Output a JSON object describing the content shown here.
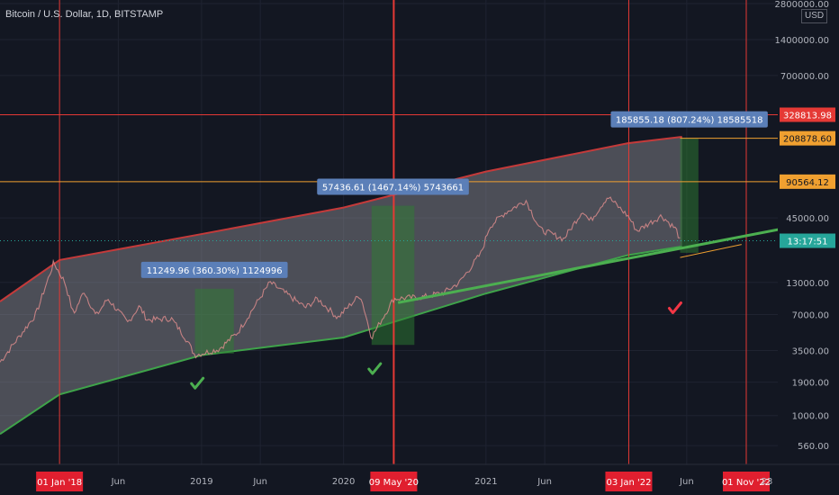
{
  "header": {
    "title": "Bitcoin / U.S. Dollar, 1D, BITSTAMP",
    "unit": "USD"
  },
  "colors": {
    "background": "#131722",
    "band_fill": "#9a9aa3",
    "band_top": "#c43a3a",
    "band_bottom": "#3fa34a",
    "price": "#26a69a",
    "red_line": "#e53935",
    "orange_line": "#f0a030",
    "trend_green": "#4caf50",
    "check_green": "#4caf50",
    "check_red": "#f23645",
    "box_label": "#5b7fb8",
    "box_fill": "#2e7d32"
  },
  "chart_data": {
    "type": "line",
    "y_scale": "log",
    "ylim": [
      390,
      3000000
    ],
    "y_ticks": [
      {
        "v": 2800000,
        "label": "2800000.00"
      },
      {
        "v": 1400000,
        "label": "1400000.00"
      },
      {
        "v": 700000,
        "label": "700000.00"
      },
      {
        "v": 45000,
        "label": "45000.00"
      },
      {
        "v": 13000,
        "label": "13000.00"
      },
      {
        "v": 7000,
        "label": "7000.00"
      },
      {
        "v": 3500,
        "label": "3500.00"
      },
      {
        "v": 1900,
        "label": "1900.00"
      },
      {
        "v": 1000,
        "label": "1000.00"
      },
      {
        "v": 560,
        "label": "560.00"
      }
    ],
    "x_ticks": [
      {
        "date": "2018-06-01",
        "label": "Jun"
      },
      {
        "date": "2019-01-01",
        "label": "2019"
      },
      {
        "date": "2019-06-01",
        "label": "Jun"
      },
      {
        "date": "2020-01-01",
        "label": "2020"
      },
      {
        "date": "2021-01-01",
        "label": "2021"
      },
      {
        "date": "2021-06-01",
        "label": "Jun"
      },
      {
        "date": "2022-06-01",
        "label": "Jun"
      }
    ],
    "x_markers": [
      {
        "date": "2018-01-01",
        "label": "01 Jan '18"
      },
      {
        "date": "2020-05-09",
        "label": "09 May '20",
        "emphasis": true
      },
      {
        "date": "2022-01-03",
        "label": "03 Jan '22"
      },
      {
        "date": "2022-11-01",
        "label": "01 Nov '22"
      }
    ],
    "x_edge_label": "23",
    "price_series": [
      {
        "date": "2017-08-01",
        "v": 2800
      },
      {
        "date": "2017-11-01",
        "v": 7000
      },
      {
        "date": "2017-12-17",
        "v": 19000
      },
      {
        "date": "2018-01-15",
        "v": 13000
      },
      {
        "date": "2018-02-06",
        "v": 7000
      },
      {
        "date": "2018-03-05",
        "v": 11000
      },
      {
        "date": "2018-04-05",
        "v": 6800
      },
      {
        "date": "2018-05-05",
        "v": 9500
      },
      {
        "date": "2018-06-25",
        "v": 6000
      },
      {
        "date": "2018-07-25",
        "v": 8200
      },
      {
        "date": "2018-08-15",
        "v": 6300
      },
      {
        "date": "2018-10-15",
        "v": 6500
      },
      {
        "date": "2018-11-20",
        "v": 4500
      },
      {
        "date": "2018-12-15",
        "v": 3200
      },
      {
        "date": "2019-02-15",
        "v": 3600
      },
      {
        "date": "2019-04-05",
        "v": 5000
      },
      {
        "date": "2019-05-15",
        "v": 8000
      },
      {
        "date": "2019-06-26",
        "v": 13000
      },
      {
        "date": "2019-08-15",
        "v": 10000
      },
      {
        "date": "2019-09-25",
        "v": 8000
      },
      {
        "date": "2019-10-26",
        "v": 9500
      },
      {
        "date": "2019-12-17",
        "v": 6600
      },
      {
        "date": "2020-02-13",
        "v": 10300
      },
      {
        "date": "2020-03-13",
        "v": 4500
      },
      {
        "date": "2020-05-09",
        "v": 9500
      },
      {
        "date": "2020-07-25",
        "v": 9800
      },
      {
        "date": "2020-09-15",
        "v": 10700
      },
      {
        "date": "2020-10-25",
        "v": 13000
      },
      {
        "date": "2020-12-20",
        "v": 23000
      },
      {
        "date": "2021-01-10",
        "v": 38000
      },
      {
        "date": "2021-02-20",
        "v": 50000
      },
      {
        "date": "2021-04-14",
        "v": 63000
      },
      {
        "date": "2021-05-20",
        "v": 36000
      },
      {
        "date": "2021-07-20",
        "v": 30000
      },
      {
        "date": "2021-09-07",
        "v": 52000
      },
      {
        "date": "2021-09-25",
        "v": 42000
      },
      {
        "date": "2021-11-10",
        "v": 68000
      },
      {
        "date": "2022-01-03",
        "v": 46000
      },
      {
        "date": "2022-01-24",
        "v": 35000
      },
      {
        "date": "2022-03-28",
        "v": 47000
      },
      {
        "date": "2022-05-05",
        "v": 36000
      },
      {
        "date": "2022-05-15",
        "v": 29000
      }
    ],
    "band_top": [
      {
        "date": "2017-08-01",
        "v": 9000
      },
      {
        "date": "2018-01-01",
        "v": 20000
      },
      {
        "date": "2019-01-01",
        "v": 33000
      },
      {
        "date": "2020-01-01",
        "v": 55000
      },
      {
        "date": "2021-01-01",
        "v": 110000
      },
      {
        "date": "2022-01-01",
        "v": 190000
      },
      {
        "date": "2022-05-20",
        "v": 215000
      }
    ],
    "band_bottom": [
      {
        "date": "2017-08-01",
        "v": 700
      },
      {
        "date": "2018-01-01",
        "v": 1500
      },
      {
        "date": "2019-01-01",
        "v": 3200
      },
      {
        "date": "2020-01-01",
        "v": 4500
      },
      {
        "date": "2021-01-01",
        "v": 10500
      },
      {
        "date": "2022-01-01",
        "v": 22000
      },
      {
        "date": "2022-05-20",
        "v": 26000
      }
    ],
    "trend_line": {
      "from": {
        "date": "2020-05-20",
        "v": 8800
      },
      "to": {
        "date": "2023-03-01",
        "v": 38000
      }
    },
    "yellow_segment": {
      "from": {
        "date": "2022-05-15",
        "v": 21000
      },
      "to": {
        "date": "2022-10-20",
        "v": 27000
      }
    },
    "h_lines": [
      {
        "v": 328813.98,
        "label": "328813.98",
        "color": "red"
      },
      {
        "v": 90564.12,
        "label": "90564.12",
        "color": "orange"
      }
    ],
    "price_tags": [
      {
        "v": 208878.6,
        "label": "208878.60",
        "color": "orange"
      },
      {
        "v": 29000,
        "label": "13:17:51",
        "color": "teal"
      }
    ],
    "measurements": [
      {
        "from": "2018-12-15",
        "to": "2019-03-25",
        "low": 3300,
        "high": 11500,
        "label": "11249.96 (360.30%) 1124996"
      },
      {
        "from": "2020-03-13",
        "to": "2020-07-01",
        "low": 3900,
        "high": 57000,
        "label": "57436.61 (1467.14%) 5743661"
      },
      {
        "from": "2022-05-15",
        "to": "2022-07-01",
        "low": 23000,
        "high": 208878.6,
        "label": "185855.18 (807.24%) 18585518"
      }
    ],
    "checkmarks": [
      {
        "date": "2018-12-20",
        "v": 1850,
        "color": "green"
      },
      {
        "date": "2020-03-20",
        "v": 2450,
        "color": "green"
      },
      {
        "date": "2022-05-01",
        "v": 7900,
        "color": "red"
      }
    ]
  }
}
